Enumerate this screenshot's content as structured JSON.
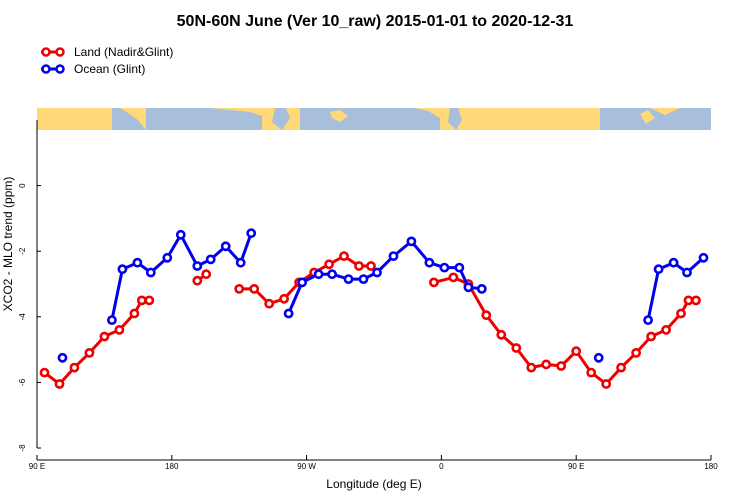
{
  "chart_data": {
    "type": "line",
    "title": "50N-60N June (Ver 10_raw)   2015-01-01 to 2020-12-31",
    "xlabel": "Longitude (deg E)",
    "ylabel": "XCO2 - MLO trend (ppm)",
    "xlim": [
      90,
      540
    ],
    "ylim": [
      -8,
      2
    ],
    "x_ticks": [
      {
        "value": 90,
        "label": "90 E"
      },
      {
        "value": 180,
        "label": "180"
      },
      {
        "value": 270,
        "label": "90 W"
      },
      {
        "value": 360,
        "label": "0"
      },
      {
        "value": 450,
        "label": "90 E"
      },
      {
        "value": 540,
        "label": "180"
      }
    ],
    "y_ticks": [
      {
        "value": 0,
        "label": "0"
      },
      {
        "value": -2,
        "label": "-2"
      },
      {
        "value": -4,
        "label": "-4"
      },
      {
        "value": -6,
        "label": "-6"
      },
      {
        "value": -8,
        "label": "-8"
      }
    ],
    "legend_position": "top-left",
    "map_strip": {
      "value": 0,
      "land_color": "#FFD977",
      "ocean_color": "#A7BEDD"
    },
    "series": [
      {
        "name": "Land (Nadir&Glint)",
        "color": "#EE0000",
        "segments": [
          [
            [
              95,
              -5.7
            ],
            [
              105,
              -6.05
            ],
            [
              115,
              -5.55
            ],
            [
              125,
              -5.1
            ],
            [
              135,
              -4.6
            ],
            [
              145,
              -4.4
            ],
            [
              155,
              -3.9
            ],
            [
              160,
              -3.5
            ],
            [
              165,
              -3.5
            ]
          ],
          [
            [
              197,
              -2.9
            ],
            [
              203,
              -2.7
            ]
          ],
          [
            [
              225,
              -3.15
            ],
            [
              235,
              -3.15
            ],
            [
              245,
              -3.6
            ],
            [
              255,
              -3.45
            ],
            [
              265,
              -2.95
            ],
            [
              275,
              -2.65
            ],
            [
              285,
              -2.4
            ],
            [
              295,
              -2.15
            ],
            [
              305,
              -2.45
            ],
            [
              313,
              -2.45
            ]
          ],
          [
            [
              355,
              -2.95
            ],
            [
              368,
              -2.8
            ],
            [
              378,
              -3.0
            ],
            [
              390,
              -3.95
            ],
            [
              400,
              -4.55
            ],
            [
              410,
              -4.95
            ],
            [
              420,
              -5.55
            ],
            [
              430,
              -5.45
            ],
            [
              440,
              -5.5
            ],
            [
              450,
              -5.05
            ],
            [
              460,
              -5.7
            ],
            [
              470,
              -6.05
            ],
            [
              480,
              -5.55
            ],
            [
              490,
              -5.1
            ],
            [
              500,
              -4.6
            ],
            [
              510,
              -4.4
            ],
            [
              520,
              -3.9
            ],
            [
              525,
              -3.5
            ],
            [
              530,
              -3.5
            ]
          ]
        ]
      },
      {
        "name": "Ocean (Glint)",
        "color": "#0000EE",
        "segments": [
          [
            [
              107,
              -5.25
            ]
          ],
          [
            [
              140,
              -4.1
            ],
            [
              147,
              -2.55
            ],
            [
              157,
              -2.35
            ],
            [
              166,
              -2.65
            ],
            [
              177,
              -2.2
            ],
            [
              186,
              -1.5
            ],
            [
              197,
              -2.45
            ],
            [
              206,
              -2.25
            ],
            [
              216,
              -1.85
            ],
            [
              226,
              -2.35
            ],
            [
              233,
              -1.45
            ]
          ],
          [
            [
              258,
              -3.9
            ],
            [
              267,
              -2.95
            ],
            [
              278,
              -2.7
            ],
            [
              287,
              -2.7
            ],
            [
              298,
              -2.85
            ],
            [
              308,
              -2.85
            ],
            [
              317,
              -2.65
            ],
            [
              328,
              -2.15
            ],
            [
              340,
              -1.7
            ],
            [
              352,
              -2.35
            ],
            [
              362,
              -2.5
            ],
            [
              372,
              -2.5
            ],
            [
              378,
              -3.1
            ],
            [
              387,
              -3.15
            ]
          ],
          [
            [
              465,
              -5.25
            ]
          ],
          [
            [
              498,
              -4.1
            ],
            [
              505,
              -2.55
            ],
            [
              515,
              -2.35
            ],
            [
              524,
              -2.65
            ],
            [
              535,
              -2.2
            ]
          ]
        ]
      }
    ]
  }
}
